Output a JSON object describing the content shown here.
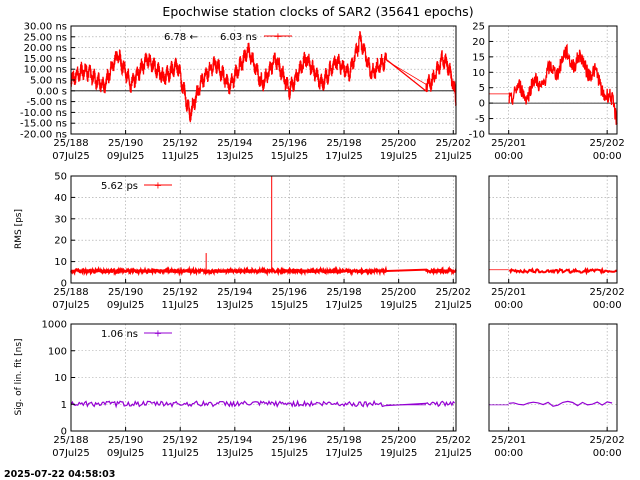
{
  "title": "Epochwise station clocks of SAR2 (35641 epochs)",
  "timestamp": "2025-07-22 04:58:03",
  "x_ticks_main": [
    {
      "day": 188,
      "top": "25/188",
      "bottom": "07Jul25"
    },
    {
      "day": 190,
      "top": "25/190",
      "bottom": "09Jul25"
    },
    {
      "day": 192,
      "top": "25/192",
      "bottom": "11Jul25"
    },
    {
      "day": 194,
      "top": "25/194",
      "bottom": "13Jul25"
    },
    {
      "day": 196,
      "top": "25/196",
      "bottom": "15Jul25"
    },
    {
      "day": 198,
      "top": "25/198",
      "bottom": "17Jul25"
    },
    {
      "day": 200,
      "top": "25/200",
      "bottom": "19Jul25"
    },
    {
      "day": 202,
      "top": "25/202",
      "bottom": "21Jul25"
    }
  ],
  "x_ticks_zoom": [
    {
      "day": 201,
      "top": "25/201",
      "bottom": "00:00"
    },
    {
      "day": 202,
      "top": "25/202",
      "bottom": "00:00"
    }
  ],
  "chart_data": [
    {
      "id": "clock",
      "type": "line",
      "series": [
        {
          "name": "6.03 ns",
          "color": "#ff0000",
          "marker": "+"
        }
      ],
      "annotation": "6.78 ←",
      "ylabel": "",
      "x_range_days": [
        188,
        202.1
      ],
      "ylim": [
        -20,
        30
      ],
      "yticks": [
        "30.00 ns",
        "25.00 ns",
        "20.00 ns",
        "15.00 ns",
        "10.00 ns",
        "5.00 ns",
        "0.00 s",
        "-5.00 ns",
        "-10.00 ns",
        "-15.00 ns",
        "-20.00 ns"
      ],
      "zoom_x_range_days": [
        200.8,
        202.1
      ],
      "zoom_ylim": [
        -10,
        25
      ],
      "zoom_yticks": [
        "25",
        "20",
        "15",
        "10",
        "5",
        "0",
        "-5",
        "-10"
      ],
      "key_points": [
        [
          188.0,
          5.0
        ],
        [
          188.5,
          10.0
        ],
        [
          189.2,
          2.0
        ],
        [
          189.7,
          17.0
        ],
        [
          190.2,
          3.0
        ],
        [
          190.8,
          15.0
        ],
        [
          191.4,
          6.0
        ],
        [
          191.9,
          12.0
        ],
        [
          192.35,
          -11.0
        ],
        [
          192.8,
          5.0
        ],
        [
          193.3,
          13.0
        ],
        [
          193.8,
          2.0
        ],
        [
          194.5,
          19.0
        ],
        [
          195.0,
          3.0
        ],
        [
          195.5,
          15.0
        ],
        [
          196.0,
          0.0
        ],
        [
          196.6,
          15.0
        ],
        [
          197.2,
          3.0
        ],
        [
          197.7,
          14.0
        ],
        [
          198.2,
          8.0
        ],
        [
          198.6,
          24.0
        ],
        [
          199.0,
          8.0
        ],
        [
          199.5,
          14.0
        ],
        [
          201.0,
          3.0
        ],
        [
          201.2,
          4.0
        ],
        [
          201.4,
          9.0
        ],
        [
          201.6,
          15.0
        ],
        [
          201.8,
          12.0
        ],
        [
          202.0,
          3.0
        ],
        [
          202.1,
          -5.0
        ]
      ]
    },
    {
      "id": "rms",
      "type": "line",
      "series": [
        {
          "name": "5.62 ps",
          "color": "#ff0000",
          "marker": "+"
        }
      ],
      "ylabel": "RMS [ps]",
      "x_range_days": [
        188,
        202.1
      ],
      "ylim": [
        0,
        50
      ],
      "yticks": [
        "50",
        "40",
        "30",
        "20",
        "10",
        "0"
      ],
      "baseline": 5.6,
      "spikes": [
        {
          "day": 192.95,
          "value": 14
        },
        {
          "day": 195.35,
          "value": 50
        }
      ],
      "zoom_ylim": [
        0,
        50
      ],
      "zoom_yticks": []
    },
    {
      "id": "sig",
      "type": "line",
      "series": [
        {
          "name": "1.06 ns",
          "color": "#9400d3",
          "marker": "+"
        }
      ],
      "ylabel": "Sig. of lin. fit [ns]",
      "x_range_days": [
        188,
        202.1
      ],
      "yscale": "log",
      "ylim_decades": [
        -1,
        3
      ],
      "yticks": [
        {
          "v": 1000,
          "label": "1000"
        },
        {
          "v": 100,
          "label": "100"
        },
        {
          "v": 10,
          "label": "10"
        },
        {
          "v": 1,
          "label": "1"
        },
        {
          "v": 0,
          "label": "0"
        }
      ],
      "baseline": 1.06,
      "zoom_yticks": []
    }
  ]
}
